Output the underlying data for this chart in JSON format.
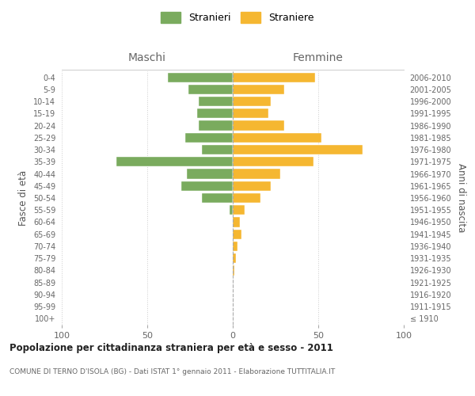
{
  "age_groups": [
    "100+",
    "95-99",
    "90-94",
    "85-89",
    "80-84",
    "75-79",
    "70-74",
    "65-69",
    "60-64",
    "55-59",
    "50-54",
    "45-49",
    "40-44",
    "35-39",
    "30-34",
    "25-29",
    "20-24",
    "15-19",
    "10-14",
    "5-9",
    "0-4"
  ],
  "birth_years": [
    "≤ 1910",
    "1911-1915",
    "1916-1920",
    "1921-1925",
    "1926-1930",
    "1931-1935",
    "1936-1940",
    "1941-1945",
    "1946-1950",
    "1951-1955",
    "1956-1960",
    "1961-1965",
    "1966-1970",
    "1971-1975",
    "1976-1980",
    "1981-1985",
    "1986-1990",
    "1991-1995",
    "1996-2000",
    "2001-2005",
    "2006-2010"
  ],
  "stranieri": [
    0,
    0,
    0,
    0,
    0,
    0,
    0,
    0,
    0,
    2,
    18,
    30,
    27,
    68,
    18,
    28,
    20,
    21,
    20,
    26,
    38
  ],
  "straniere": [
    0,
    0,
    0,
    0,
    1,
    2,
    3,
    5,
    4,
    7,
    16,
    22,
    28,
    47,
    76,
    52,
    30,
    21,
    22,
    30,
    48
  ],
  "male_color": "#7aab5e",
  "female_color": "#f5b731",
  "title": "Popolazione per cittadinanza straniera per età e sesso - 2011",
  "subtitle": "COMUNE DI TERNO D'ISOLA (BG) - Dati ISTAT 1° gennaio 2011 - Elaborazione TUTTITALIA.IT",
  "xlabel_left": "Maschi",
  "xlabel_right": "Femmine",
  "ylabel_left": "Fasce di età",
  "ylabel_right": "Anni di nascita",
  "legend_male": "Stranieri",
  "legend_female": "Straniere",
  "xlim": 100,
  "background_color": "#ffffff",
  "grid_color": "#cccccc"
}
